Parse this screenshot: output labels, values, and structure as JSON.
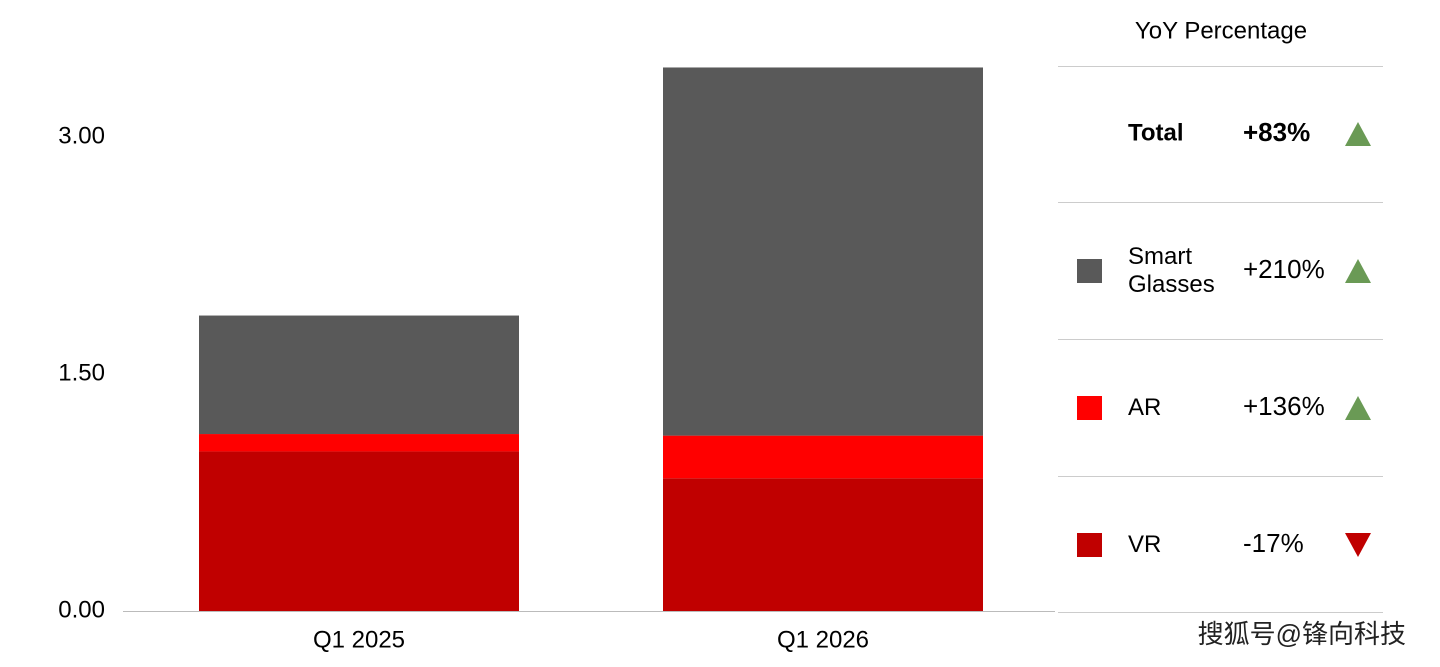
{
  "chart_data": {
    "type": "stacked_bar",
    "categories": [
      "Q1 2025",
      "Q1 2026"
    ],
    "series": [
      {
        "name": "VR",
        "color": "#c00000",
        "values": [
          1.01,
          0.84
        ],
        "yoy": -17,
        "yoy_label": "-17%"
      },
      {
        "name": "AR",
        "color": "#ff0000",
        "values": [
          0.11,
          0.27
        ],
        "yoy": 136,
        "yoy_label": "+136%"
      },
      {
        "name": "Smart Glasses",
        "color": "#595959",
        "values": [
          0.75,
          2.33
        ],
        "yoy": 210,
        "yoy_label": "+210%"
      }
    ],
    "ylim": [
      0,
      3.5
    ],
    "yticks": [
      {
        "value": 0,
        "label": "0.00"
      },
      {
        "value": 1.5,
        "label": "1.50"
      },
      {
        "value": 3,
        "label": "3.00"
      }
    ],
    "grid": false,
    "table_title": "YoY Percentage",
    "total_label": "Total",
    "total_yoy": 83,
    "total_yoy_label": "+83%",
    "up_color": "#6a9a55",
    "down_color": "#c00000",
    "watermark": "搜狐号@锋向科技"
  }
}
